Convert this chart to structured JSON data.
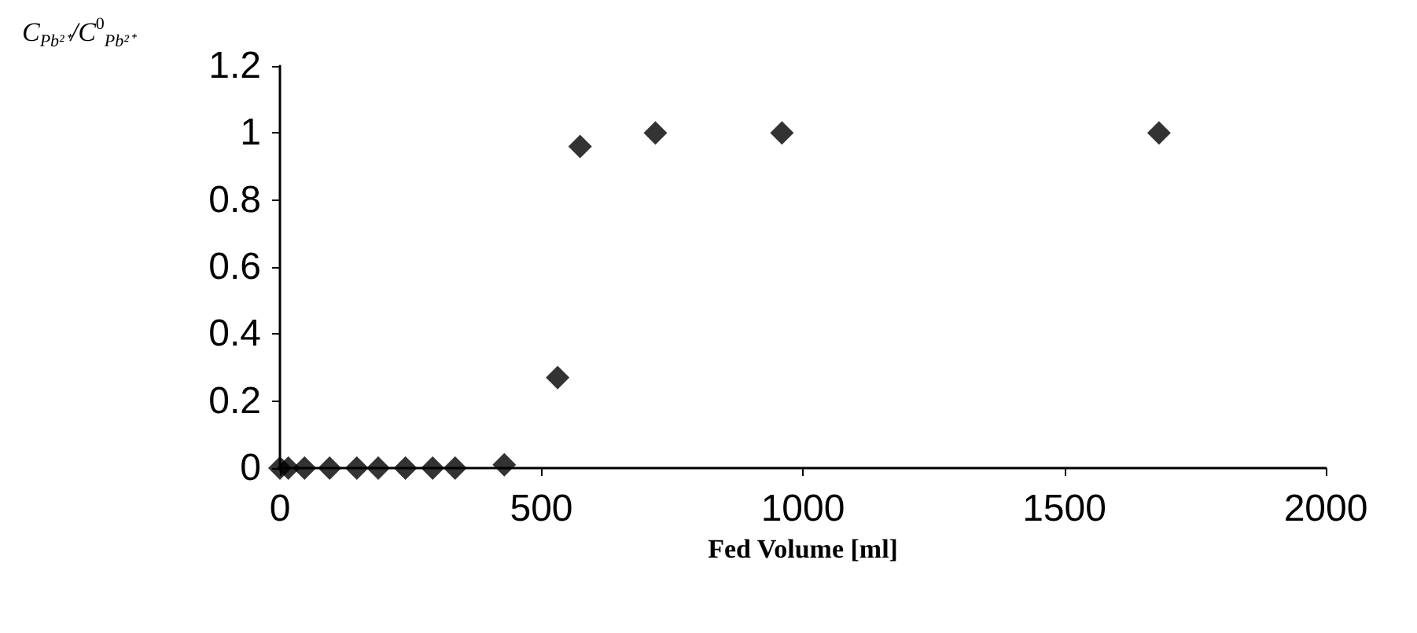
{
  "chart_data": {
    "type": "scatter",
    "xlabel": "Fed Volume [ml]",
    "ylabel": "C$_{Pb²⁺}$/C$^{0}$$_{Pb²⁺}$",
    "x": [
      0,
      16,
      47,
      95,
      147,
      188,
      240,
      292,
      335,
      429,
      531,
      574,
      718,
      960,
      1681
    ],
    "series": [
      {
        "color": "#000000",
        "values": [
          0,
          0,
          0,
          0,
          0,
          0,
          0,
          0,
          0,
          0.01,
          0.27,
          0.96,
          1,
          1,
          1
        ]
      }
    ],
    "marker": "diamond",
    "xlim": [
      0,
      2000
    ],
    "xticks": [
      0,
      500,
      1000,
      1500,
      2000
    ],
    "ylim": [
      0,
      1.2
    ],
    "yticks": [
      0,
      0.2,
      0.4,
      0.6,
      0.8,
      1,
      1.2
    ],
    "grid": false
  }
}
